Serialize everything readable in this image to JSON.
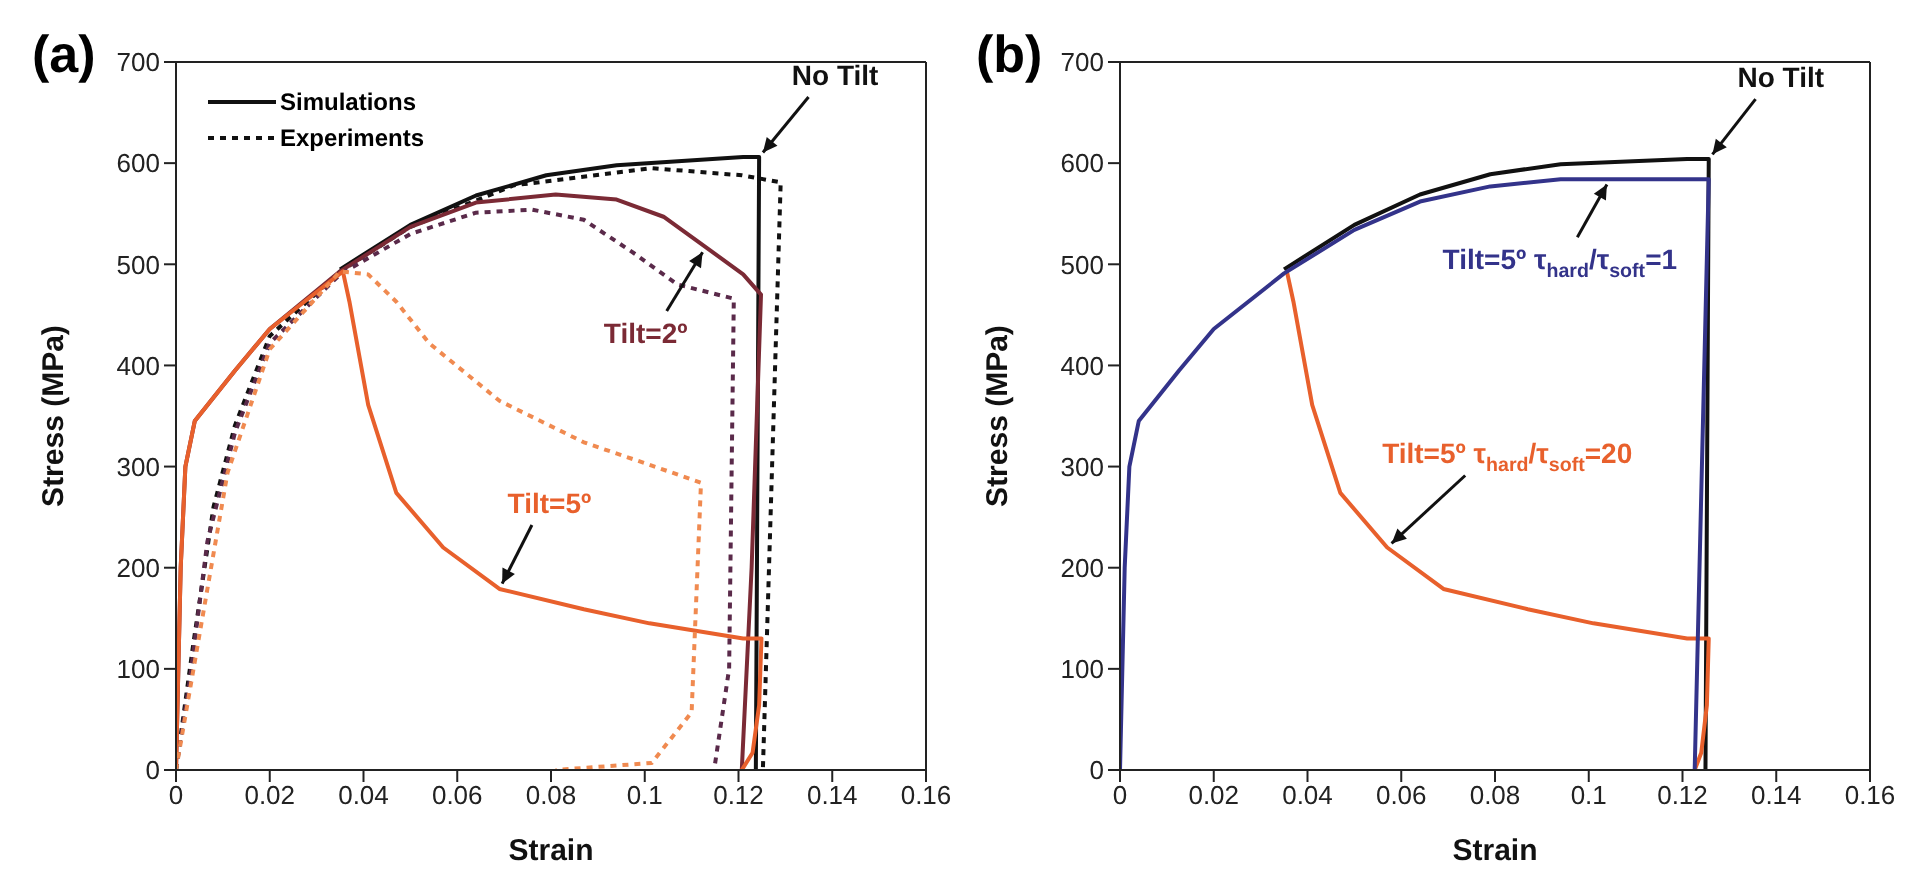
{
  "chart_data": [
    {
      "type": "line",
      "title": "(a)",
      "xlabel": "Strain",
      "ylabel": "Stress (MPa)",
      "xlim": [
        0,
        0.16
      ],
      "xticks": [
        0,
        0.02,
        0.04,
        0.06,
        0.08,
        0.1,
        0.12,
        0.14,
        0.16
      ],
      "ylim": [
        0,
        700
      ],
      "yticks": [
        0,
        100,
        200,
        300,
        400,
        500,
        600,
        700
      ],
      "legend": "top left",
      "marker": "none",
      "series": [
        {
          "name": "Simulations",
          "color": "#111111",
          "line_style": "solid",
          "x": [
            0.035,
            0.05,
            0.064,
            0.079,
            0.094,
            0.121,
            0.1244,
            0.1237
          ],
          "values": [
            495,
            539,
            568,
            588,
            598,
            606,
            606,
            0
          ]
        },
        {
          "name": "Experiments",
          "color": "#111111",
          "line_style": "dotted",
          "x": [
            0,
            0.0037,
            0.008,
            0.0126,
            0.02,
            0.035,
            0.05,
            0.072,
            0.1015,
            0.1207,
            0.129,
            0.1252
          ],
          "values": [
            0,
            125,
            260,
            341,
            429,
            493,
            537,
            578,
            595,
            588,
            581,
            0
          ]
        },
        {
          "color": "#7b2a35",
          "line_style": "solid",
          "x": [
            0,
            0.001,
            0.002,
            0.004,
            0.0126,
            0.02,
            0.035,
            0.05,
            0.064,
            0.081,
            0.094,
            0.104,
            0.113,
            0.121,
            0.1248,
            0.1228,
            0.1207
          ],
          "values": [
            0,
            200,
            300,
            345,
            395,
            436,
            493,
            537,
            561,
            569,
            564,
            547,
            517,
            490,
            470,
            200,
            0
          ]
        },
        {
          "color": "#5a2a4a",
          "line_style": "dotted",
          "x": [
            0,
            0.003,
            0.0067,
            0.0126,
            0.02,
            0.035,
            0.05,
            0.064,
            0.076,
            0.087,
            0.098,
            0.107,
            0.119,
            0.118,
            0.1148
          ],
          "values": [
            0,
            91,
            226,
            334,
            422,
            490,
            530,
            551,
            554,
            544,
            510,
            480,
            466,
            100,
            0
          ]
        },
        {
          "color": "#e8602c",
          "line_style": "solid",
          "x": [
            0,
            0.001,
            0.002,
            0.004,
            0.0126,
            0.02,
            0.0356,
            0.037,
            0.041,
            0.047,
            0.057,
            0.069,
            0.087,
            0.101,
            0.121,
            0.1249,
            0.1244,
            0.123,
            0.1207
          ],
          "values": [
            0,
            200,
            300,
            345,
            395,
            436,
            493,
            463,
            361,
            274,
            220,
            179,
            159,
            145,
            130,
            130,
            64,
            17,
            0
          ]
        },
        {
          "color": "#f08a50",
          "line_style": "dotted",
          "x": [
            0,
            0.0052,
            0.011,
            0.02,
            0.035,
            0.041,
            0.047,
            0.054,
            0.069,
            0.087,
            0.1015,
            0.112,
            0.11,
            0.1015,
            0.081
          ],
          "values": [
            0,
            139,
            294,
            416,
            493,
            490,
            463,
            422,
            365,
            324,
            301,
            284,
            57,
            7,
            0
          ]
        }
      ],
      "annotations": [
        {
          "text": "No Tilt",
          "x": 0.1244,
          "y": 606
        },
        {
          "text": "Tilt=2º",
          "x": 0.113,
          "y": 517
        },
        {
          "text": "Tilt=5º",
          "x": 0.069,
          "y": 179
        }
      ]
    },
    {
      "type": "line",
      "title": "(b)",
      "xlabel": "Strain",
      "ylabel": "Stress (MPa)",
      "xlim": [
        0,
        0.16
      ],
      "xticks": [
        0,
        0.02,
        0.04,
        0.06,
        0.08,
        0.1,
        0.12,
        0.14,
        0.16
      ],
      "ylim": [
        0,
        700
      ],
      "yticks": [
        0,
        100,
        200,
        300,
        400,
        500,
        600,
        700
      ],
      "marker": "none",
      "series": [
        {
          "color": "#111111",
          "line_style": "solid",
          "x": [
            0.035,
            0.05,
            0.064,
            0.079,
            0.094,
            0.121,
            0.1256,
            0.1249
          ],
          "values": [
            495,
            539,
            569,
            589,
            599,
            604,
            604,
            0
          ]
        },
        {
          "color": "#33338a",
          "line_style": "solid",
          "x": [
            0,
            0.001,
            0.002,
            0.004,
            0.0126,
            0.02,
            0.035,
            0.05,
            0.064,
            0.079,
            0.094,
            0.1045,
            0.1256,
            0.1226
          ],
          "values": [
            0,
            200,
            300,
            345,
            395,
            436,
            491,
            534,
            562,
            577,
            584,
            584,
            584,
            0
          ]
        },
        {
          "color": "#e8602c",
          "line_style": "solid",
          "x": [
            0.0356,
            0.037,
            0.041,
            0.047,
            0.057,
            0.069,
            0.087,
            0.101,
            0.121,
            0.1256,
            0.1252,
            0.124,
            0.1226
          ],
          "values": [
            493,
            463,
            361,
            274,
            220,
            179,
            159,
            145,
            130,
            130,
            64,
            17,
            0
          ]
        }
      ],
      "annotations": [
        {
          "text": "No Tilt",
          "x": 0.1256,
          "y": 604
        },
        {
          "text": "Tilt=5º τ$_{hard}$/τ$_{soft}$=1",
          "x": 0.1045,
          "y": 584
        },
        {
          "text": "Tilt=5º τ$_{hard}$/τ$_{soft}$=20",
          "x": 0.057,
          "y": 220
        }
      ]
    }
  ]
}
